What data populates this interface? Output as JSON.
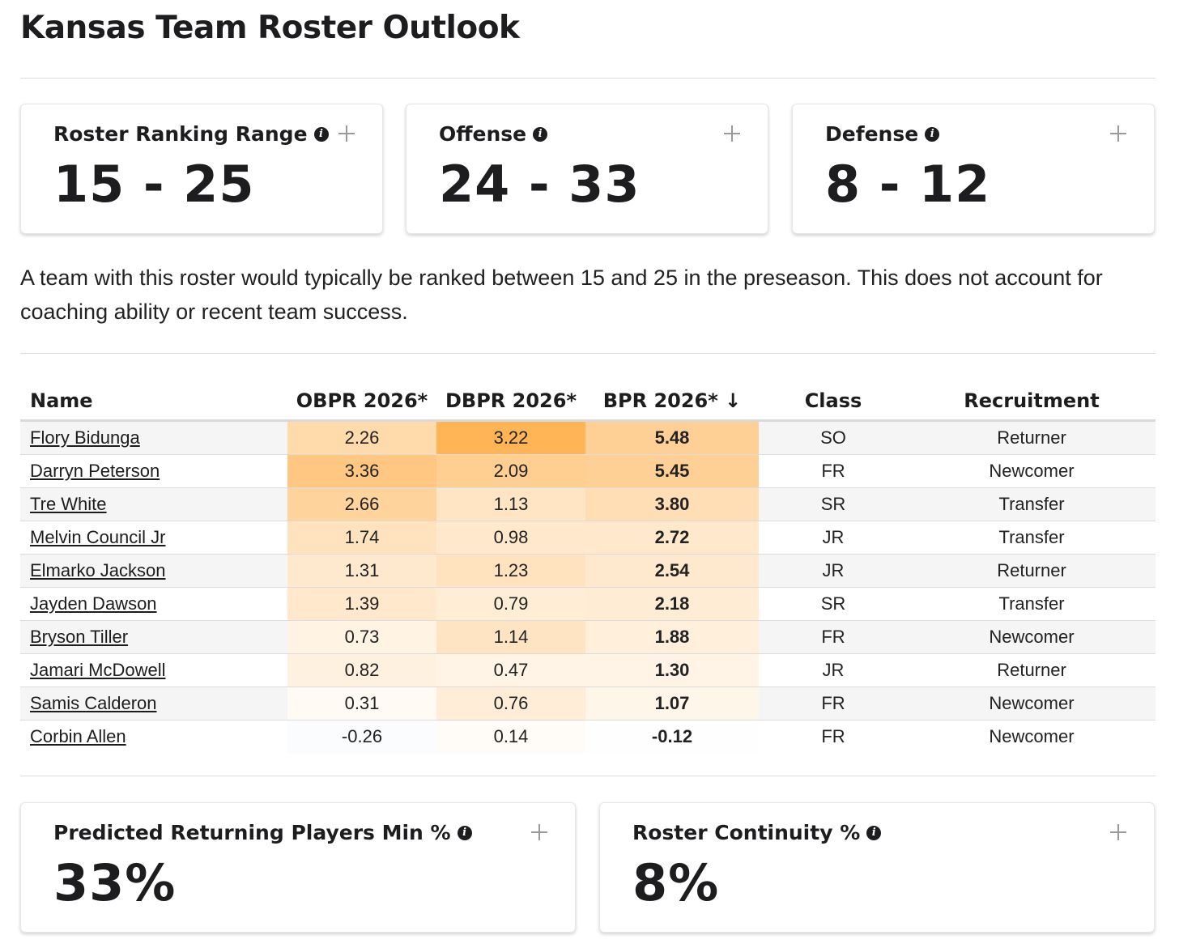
{
  "page": {
    "title": "Kansas Team Roster Outlook"
  },
  "cards": {
    "ranking": {
      "title": "Roster Ranking Range",
      "value": "15 - 25"
    },
    "offense": {
      "title": "Offense",
      "value": "24 - 33"
    },
    "defense": {
      "title": "Defense",
      "value": "8 - 12"
    },
    "returning": {
      "title": "Predicted Returning Players Min %",
      "value": "33%"
    },
    "continuity": {
      "title": "Roster Continuity %",
      "value": "8%"
    }
  },
  "icons": {
    "info": "info-icon",
    "expand": "plus-icon"
  },
  "description": "A team with this roster would typically be ranked between 15 and 25 in the preseason. This does not account for coaching ability or recent team success.",
  "table": {
    "columns": [
      "Name",
      "OBPR 2026*",
      "DBPR 2026*",
      "BPR 2026* ↓",
      "Class",
      "Recruitment"
    ],
    "sorted_column": "BPR 2026*",
    "sort_direction": "descending",
    "rows": [
      {
        "name": "Flory Bidunga",
        "obpr": "2.26",
        "dbpr": "3.22",
        "bpr": "5.48",
        "class": "SO",
        "recruitment": "Returner"
      },
      {
        "name": "Darryn Peterson",
        "obpr": "3.36",
        "dbpr": "2.09",
        "bpr": "5.45",
        "class": "FR",
        "recruitment": "Newcomer"
      },
      {
        "name": "Tre White",
        "obpr": "2.66",
        "dbpr": "1.13",
        "bpr": "3.80",
        "class": "SR",
        "recruitment": "Transfer"
      },
      {
        "name": "Melvin Council Jr",
        "obpr": "1.74",
        "dbpr": "0.98",
        "bpr": "2.72",
        "class": "JR",
        "recruitment": "Transfer"
      },
      {
        "name": "Elmarko Jackson",
        "obpr": "1.31",
        "dbpr": "1.23",
        "bpr": "2.54",
        "class": "JR",
        "recruitment": "Returner"
      },
      {
        "name": "Jayden Dawson",
        "obpr": "1.39",
        "dbpr": "0.79",
        "bpr": "2.18",
        "class": "SR",
        "recruitment": "Transfer"
      },
      {
        "name": "Bryson Tiller",
        "obpr": "0.73",
        "dbpr": "1.14",
        "bpr": "1.88",
        "class": "FR",
        "recruitment": "Newcomer"
      },
      {
        "name": "Jamari McDowell",
        "obpr": "0.82",
        "dbpr": "0.47",
        "bpr": "1.30",
        "class": "JR",
        "recruitment": "Returner"
      },
      {
        "name": "Samis Calderon",
        "obpr": "0.31",
        "dbpr": "0.76",
        "bpr": "1.07",
        "class": "FR",
        "recruitment": "Newcomer"
      },
      {
        "name": "Corbin Allen",
        "obpr": "-0.26",
        "dbpr": "0.14",
        "bpr": "-0.12",
        "class": "FR",
        "recruitment": "Newcomer"
      }
    ]
  },
  "colors": {
    "heat_positive": "#ffb456",
    "heat_negative": "#cfdde9",
    "row_stripe": "#f5f5f5",
    "divider": "#dcdcdc"
  }
}
